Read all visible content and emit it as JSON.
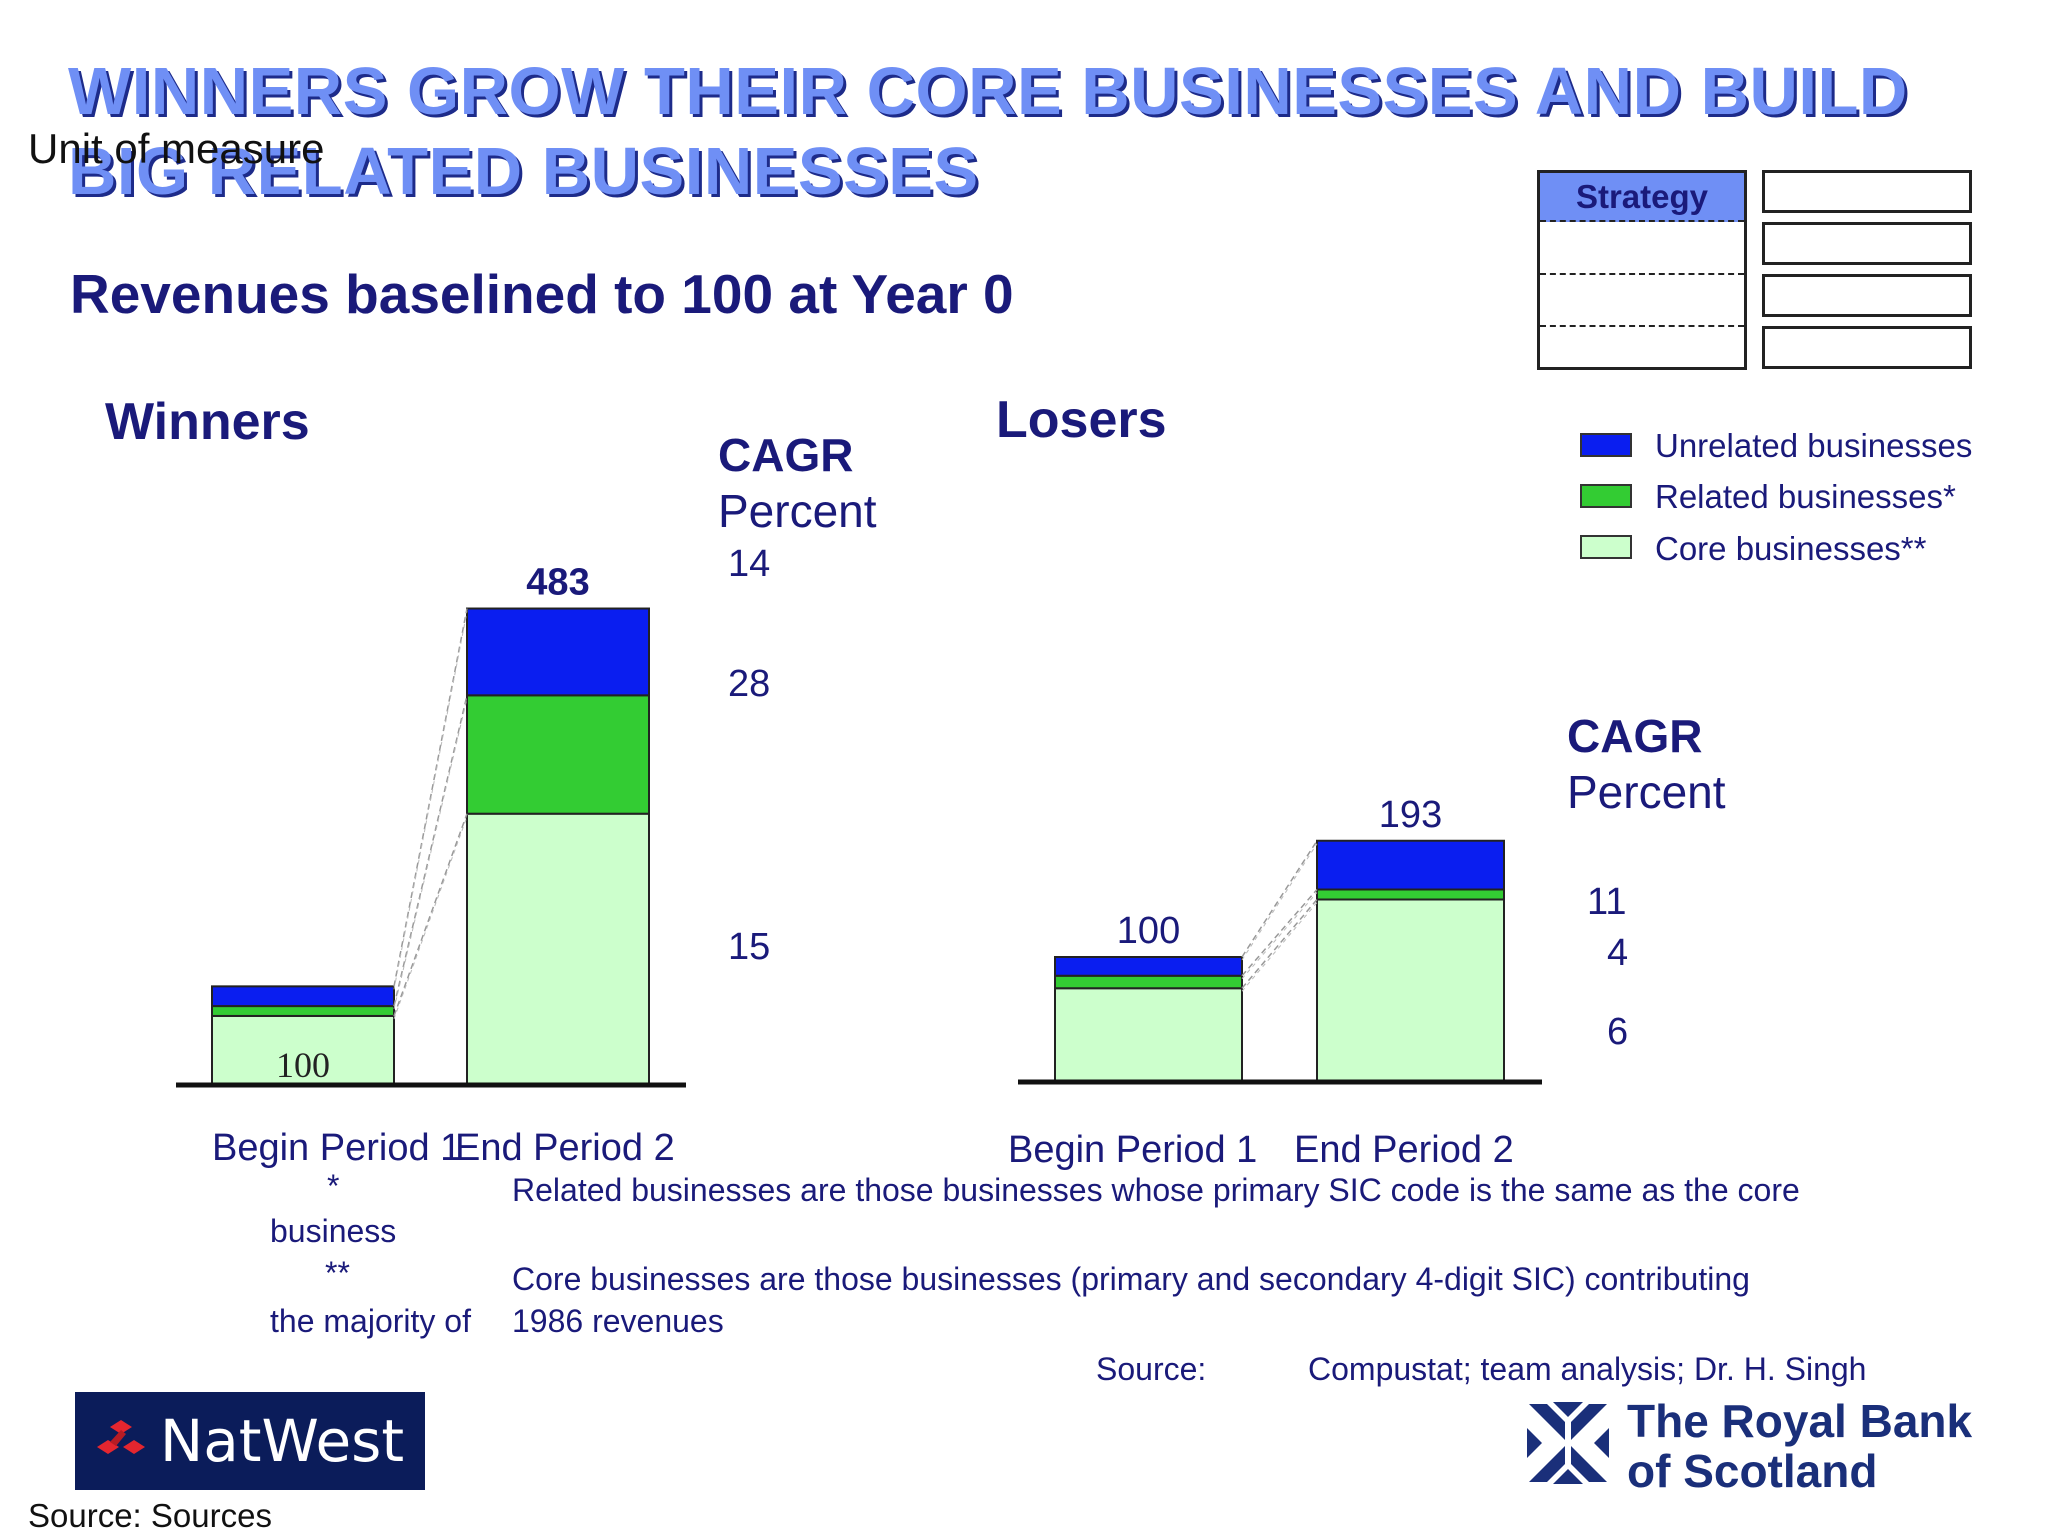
{
  "title_line1": "WINNERS GROW THEIR CORE BUSINESSES AND BUILD",
  "title_line2": "BIG RELATED BUSINESSES",
  "unit_label": "Unit of measure",
  "subtitle": "Revenues baselined to 100 at Year 0",
  "strategy_label": "Strategy",
  "legend": [
    {
      "label": "Unrelated businesses",
      "color": "#0a1ef0"
    },
    {
      "label": "Related businesses*",
      "color": "#33cc33"
    },
    {
      "label": "Core businesses**",
      "color": "#ccffcc"
    }
  ],
  "footnotes": {
    "f1_mark": "*",
    "f1_text": "Related businesses are those businesses whose primary SIC code is the same as the core",
    "f1_cont": "business",
    "f2_mark": "**",
    "f2_text": "Core businesses are those businesses (primary and secondary 4-digit SIC) contributing",
    "f2_cont_left": "the majority of",
    "f2_cont_right": "1986 revenues",
    "source_label": "Source:",
    "source_text": "Compustat; team analysis; Dr. H. Singh"
  },
  "logos": {
    "natwest": "NatWest",
    "rbs_line1": "The Royal Bank",
    "rbs_line2": "of Scotland"
  },
  "bottom_source": "Source: Sources",
  "chart_data": [
    {
      "type": "bar",
      "stacked": true,
      "title": "Winners",
      "categories": [
        "Begin Period 1",
        "End Period 2"
      ],
      "series": [
        {
          "name": "Core businesses**",
          "values": [
            70,
            275
          ]
        },
        {
          "name": "Related businesses*",
          "values": [
            10,
            120
          ]
        },
        {
          "name": "Unrelated businesses",
          "values": [
            20,
            88
          ]
        }
      ],
      "totals": [
        "100",
        "483"
      ],
      "cagr_title": "CAGR",
      "cagr_unit": "Percent",
      "cagr": {
        "Unrelated businesses": "14",
        "Related businesses*": "28",
        "Core businesses**": "15"
      },
      "ylim": [
        0,
        483
      ]
    },
    {
      "type": "bar",
      "stacked": true,
      "title": "Losers",
      "categories": [
        "Begin Period 1",
        "End Period 2"
      ],
      "series": [
        {
          "name": "Core businesses**",
          "values": [
            75,
            146
          ]
        },
        {
          "name": "Related businesses*",
          "values": [
            10,
            8
          ]
        },
        {
          "name": "Unrelated businesses",
          "values": [
            15,
            39
          ]
        }
      ],
      "totals": [
        "100",
        "193"
      ],
      "cagr_title": "CAGR",
      "cagr_unit": "Percent",
      "cagr": {
        "Unrelated businesses": "11",
        "Related businesses*": "4",
        "Core businesses**": "6"
      },
      "ylim": [
        0,
        483
      ]
    }
  ]
}
